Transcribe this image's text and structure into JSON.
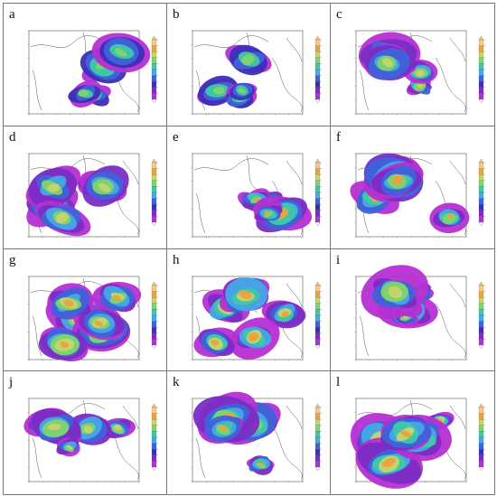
{
  "figure": {
    "panels": [
      {
        "label": "a"
      },
      {
        "label": "b"
      },
      {
        "label": "c"
      },
      {
        "label": "d"
      },
      {
        "label": "e"
      },
      {
        "label": "f"
      },
      {
        "label": "g"
      },
      {
        "label": "h"
      },
      {
        "label": "i"
      },
      {
        "label": "j"
      },
      {
        "label": "k"
      },
      {
        "label": "l"
      }
    ],
    "colorbar_colors": [
      "#f6c987",
      "#e9a340",
      "#c6d46a",
      "#7fd56a",
      "#3ec9a6",
      "#47a8e6",
      "#3f63d8",
      "#3b2fb8",
      "#7a2cc4",
      "#b52fd2"
    ]
  },
  "chart_data": {
    "type": "heatmap",
    "panel_count": 12,
    "panel_labels": [
      "a",
      "b",
      "c",
      "d",
      "e",
      "f",
      "g",
      "h",
      "i",
      "j",
      "k",
      "l"
    ],
    "layout": "4 rows x 3 columns",
    "colorbar": "vertical, right side of each map, ten color steps from orange (high) to purple (low)",
    "intensity": {
      "a": 0.35,
      "b": 0.35,
      "c": 0.55,
      "d": 0.6,
      "e": 0.65,
      "f": 0.7,
      "g": 0.85,
      "h": 0.75,
      "i": 0.55,
      "j": 0.6,
      "k": 0.7,
      "l": 0.8
    }
  }
}
